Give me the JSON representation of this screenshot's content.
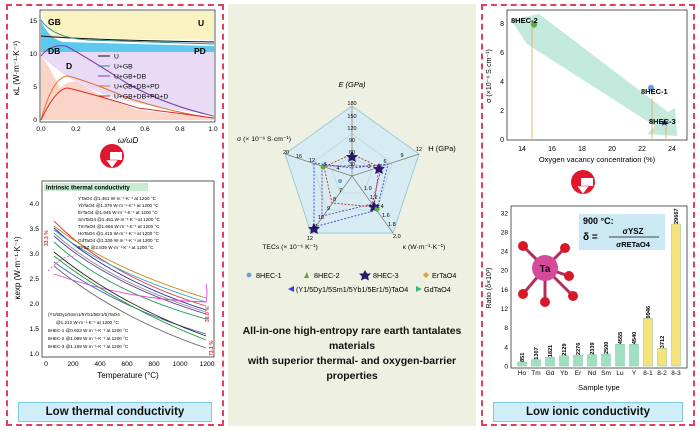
{
  "left_panel": {
    "footer": "Low thermal conductivity",
    "top_chart": {
      "ylabel": "κL (W·m⁻¹·K⁻¹)",
      "xlabel": "ω/ωD",
      "region_labels": [
        "GB",
        "U",
        "DB",
        "PD",
        "D"
      ],
      "x_ticks": [
        "0.0",
        "0.2",
        "0.4",
        "0.6",
        "0.8",
        "1.0"
      ],
      "y_ticks": [
        "0",
        "5",
        "10",
        "15"
      ],
      "legend": [
        "U",
        "U+GB",
        "U+GB+DB",
        "U+GB+DB+PD",
        "U+GB+DB+PD+D"
      ]
    },
    "bottom_chart": {
      "ylabel": "κexp (W·m⁻¹·K⁻¹)",
      "xlabel": "Temperature (°C)",
      "inset_title": "Intrinsic thermal conductivity",
      "x_ticks": [
        "0",
        "200",
        "400",
        "600",
        "800",
        "1000",
        "1200"
      ],
      "y_ticks": [
        "1.0",
        "1.5",
        "2.0",
        "2.5",
        "3.0",
        "3.5",
        "4.0"
      ],
      "legend": [
        "YTaO4 @1.461 W·m⁻¹·K⁻¹ at 1200 °C",
        "YbTaO4 @1.376 W·m⁻¹·K⁻¹ at 1200 °C",
        "ErTaO4 @1.645 W·m⁻¹·K⁻¹ at 1200 °C",
        "SmTaO4 @1.451 W·m⁻¹·K⁻¹ at 1200 °C",
        "TmTaO4 @1.656 W·m⁻¹·K⁻¹ at 1200 °C",
        "HoTaO4 @1.415 W·m⁻¹·K⁻¹ at 1200 °C",
        "GdTaO4 @1.339 W·m⁻¹·K⁻¹ at 1200 °C",
        "8YSZ @2.839 W·m⁻¹·K⁻¹ at 1200 °C"
      ],
      "legend_bottom": [
        "(Y1/5Dy1/5Sm1/5Yb1/5Er1/5)TaO4",
        "@1.212 W·m⁻¹·K⁻¹ at 1200 °C",
        "8HEC-1 @0.923 W·m⁻¹·K⁻¹ at 1200 °C",
        "8HEC-2 @1.089 W·m⁻¹·K⁻¹ at 1200 °C",
        "8HEC-3 @1.159 W·m⁻¹·K⁻¹ at 1200 °C"
      ],
      "annotations": [
        "33.3 %",
        "38.0 %",
        "73.1 %"
      ]
    }
  },
  "center_panel": {
    "radar_axes": [
      "E (GPa)",
      "H (GPa)",
      "κ (W·m⁻¹·K⁻¹)",
      "TECs (× 10⁻⁶ K⁻¹)",
      "σ (× 10⁻⁶ S·cm⁻¹)"
    ],
    "e_ticks": [
      "180",
      "150",
      "120",
      "90",
      "60",
      "30"
    ],
    "h_ticks": [
      "3",
      "6",
      "9",
      "12"
    ],
    "k_ticks": [
      "1.0",
      "1.2",
      "1.4",
      "1.6",
      "1.8",
      "2.0"
    ],
    "tec_ticks": [
      "7",
      "8",
      "9",
      "10",
      "11",
      "12"
    ],
    "sigma_ticks": [
      "4",
      "8",
      "12",
      "16",
      "20"
    ],
    "legend": [
      "8HEC-1",
      "8HEC-2",
      "8HEC-3",
      "ErTaO4",
      "(Y1/5Dy1/5Sm1/5Yb1/5Er1/5)TaO4",
      "GdTaO4"
    ],
    "caption_line1": "All-in-one high-entropy rare earth tantalates materials",
    "caption_line2": "with superior thermal- and oxygen-barrier properties",
    "colors": {
      "hec1": "#6fa0d8",
      "hec2": "#5cab3c",
      "hec3": "#2a1a6e",
      "er": "#d9a534",
      "y": "#3b3ad6",
      "gd": "#3fb57a"
    }
  },
  "right_panel": {
    "footer": "Low ionic conductivity",
    "top_chart": {
      "ylabel": "σ (×10⁻⁶ S·cm⁻¹)",
      "xlabel": "Oxygen vacancy concentration (%)",
      "x_ticks": [
        "14",
        "16",
        "18",
        "20",
        "22",
        "24"
      ],
      "y_ticks": [
        "0",
        "2",
        "4",
        "6",
        "8"
      ],
      "point_labels": [
        "8HEC-2",
        "8HEC-1",
        "8HEC-3"
      ]
    },
    "bottom_chart": {
      "ylabel": "Ratio (δ×10³)",
      "xlabel": "Sample type",
      "formula_temp": "900 °C:",
      "formula_delta": "δ =",
      "formula_num": "σYSZ",
      "formula_den": "σRETaO4",
      "atom_label": "Ta",
      "y_ticks": [
        "0",
        "4",
        "8",
        "12",
        "16",
        "20",
        "24",
        "28",
        "32"
      ],
      "categories": [
        "Ho",
        "Tm",
        "Gd",
        "Yb",
        "Er",
        "Nd",
        "Sm",
        "Lu",
        "Y",
        "8-1",
        "8-2",
        "8-3"
      ],
      "value_labels": [
        "851",
        "1307",
        "1821",
        "2129",
        "2276",
        "2339",
        "2500",
        "4555",
        "4540",
        "9946",
        "3712",
        "29667"
      ]
    }
  },
  "chart_data": [
    {
      "type": "bar",
      "title": "",
      "xlabel": "Sample type",
      "ylabel": "Ratio (δ×10³)",
      "categories": [
        "Ho",
        "Tm",
        "Gd",
        "Yb",
        "Er",
        "Nd",
        "Sm",
        "Lu",
        "Y",
        "8-1",
        "8-2",
        "8-3"
      ],
      "values": [
        0.851,
        1.307,
        1.821,
        2.129,
        2.276,
        2.339,
        2.5,
        4.555,
        4.54,
        9.946,
        3.712,
        29.667
      ],
      "ylim": [
        0,
        33
      ]
    },
    {
      "type": "scatter",
      "title": "",
      "xlabel": "Oxygen vacancy concentration (%)",
      "ylabel": "σ (×10⁻⁶ S·cm⁻¹)",
      "series": [
        {
          "name": "8HEC-2",
          "x": [
            14.8
          ],
          "y": [
            8.0
          ]
        },
        {
          "name": "8HEC-1",
          "x": [
            22.6
          ],
          "y": [
            3.6
          ]
        },
        {
          "name": "8HEC-3",
          "x": [
            23.5
          ],
          "y": [
            1.2
          ]
        }
      ],
      "xlim": [
        13,
        25
      ],
      "ylim": [
        0,
        9
      ]
    }
  ]
}
